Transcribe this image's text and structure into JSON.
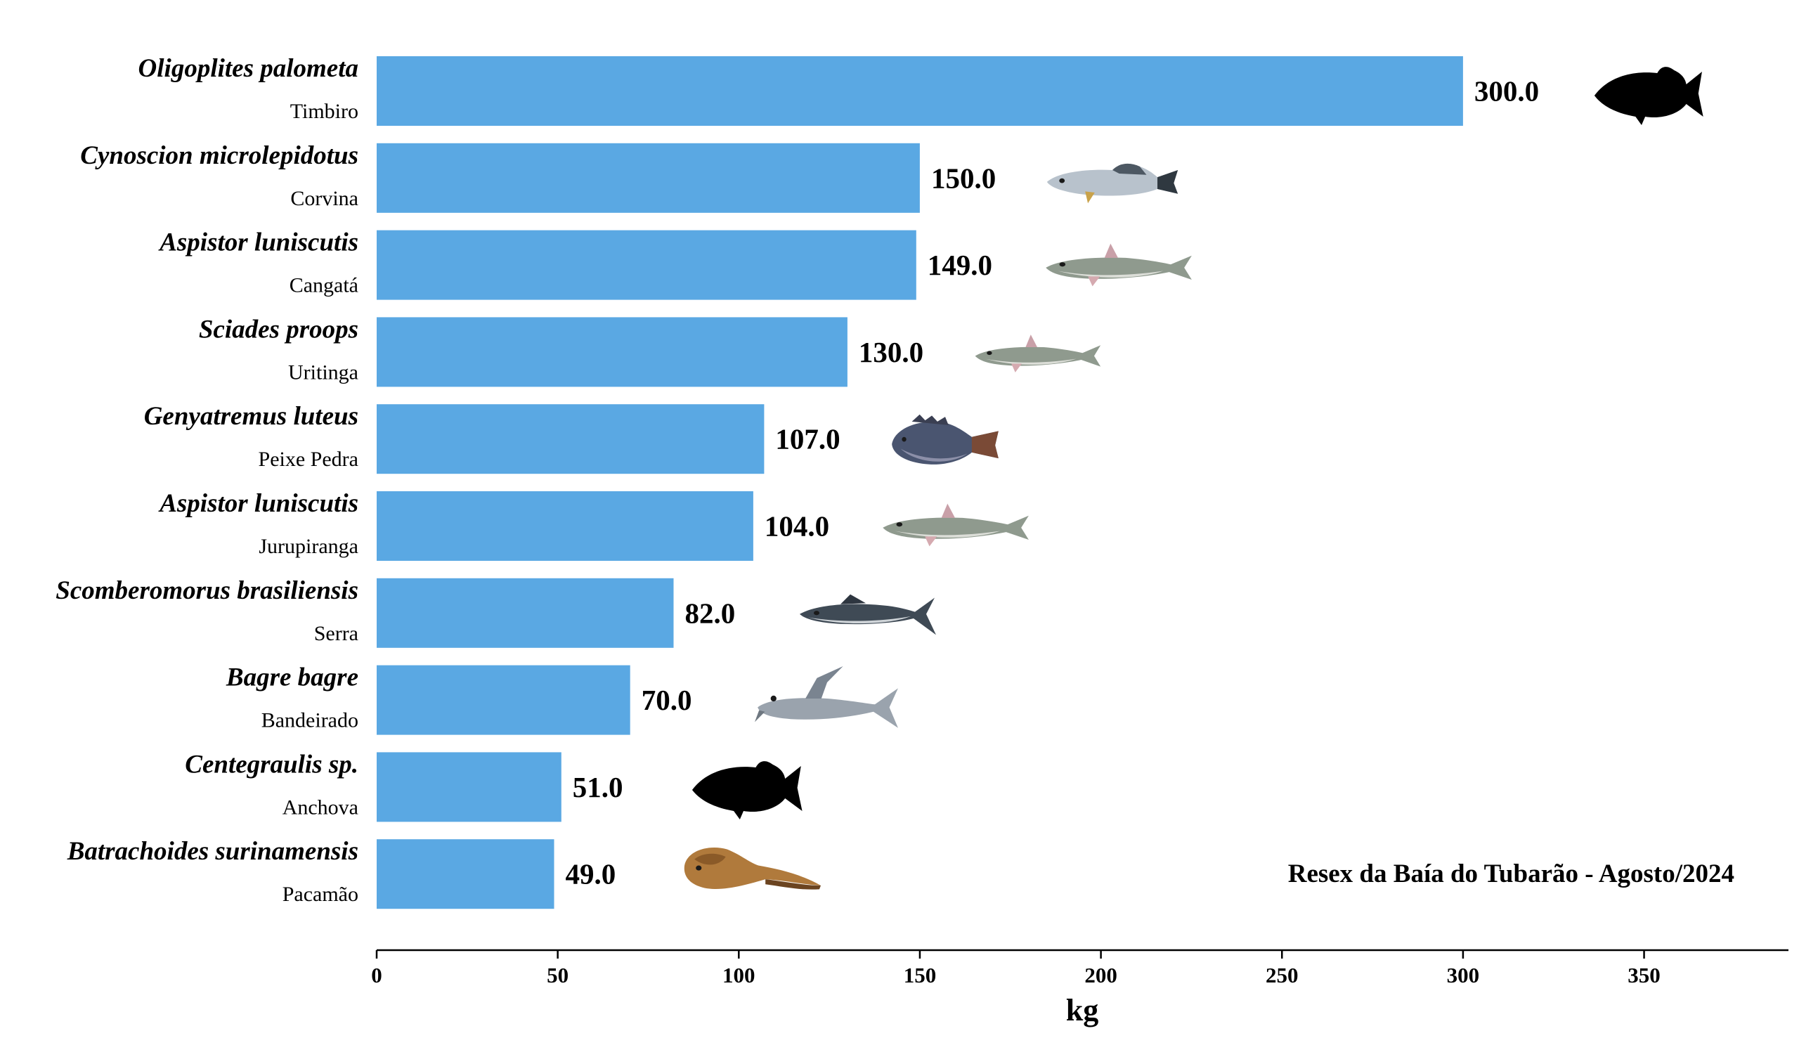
{
  "chart_data": {
    "type": "bar",
    "orientation": "horizontal",
    "categories": [
      {
        "scientific": "Oligoplites palometa",
        "common": "Timbiro",
        "icon": "fish-silhouette-icon"
      },
      {
        "scientific": "Cynoscion microlepidotus",
        "common": "Corvina",
        "icon": "corvina-fish-icon"
      },
      {
        "scientific": "Aspistor luniscutis",
        "common": "Cangatá",
        "icon": "catfish-icon"
      },
      {
        "scientific": "Sciades proops",
        "common": "Uritinga",
        "icon": "catfish-icon"
      },
      {
        "scientific": "Genyatremus luteus",
        "common": "Peixe Pedra",
        "icon": "grunt-fish-icon"
      },
      {
        "scientific": "Aspistor luniscutis",
        "common": "Jurupiranga",
        "icon": "catfish-icon"
      },
      {
        "scientific": "Scomberomorus brasiliensis",
        "common": "Serra",
        "icon": "mackerel-icon"
      },
      {
        "scientific": "Bagre bagre",
        "common": "Bandeirado",
        "icon": "flag-catfish-icon"
      },
      {
        "scientific": "Centegraulis sp.",
        "common": "Anchova",
        "icon": "fish-silhouette-icon"
      },
      {
        "scientific": "Batrachoides surinamensis",
        "common": "Pacamão",
        "icon": "toadfish-icon"
      }
    ],
    "values": [
      300.0,
      150.0,
      149.0,
      130.0,
      107.0,
      104.0,
      82.0,
      70.0,
      51.0,
      49.0
    ],
    "value_labels": [
      "300.0",
      "150.0",
      "149.0",
      "130.0",
      "107.0",
      "104.0",
      "82.0",
      "70.0",
      "51.0",
      "49.0"
    ],
    "xlabel": "kg",
    "xlim": [
      0,
      390
    ],
    "xticks": [
      0,
      50,
      100,
      150,
      200,
      250,
      300,
      350
    ],
    "annotation": "Resex da Baía do Tubarão - Agosto/2024",
    "bar_color": "#5aa8e3",
    "grid": false
  }
}
